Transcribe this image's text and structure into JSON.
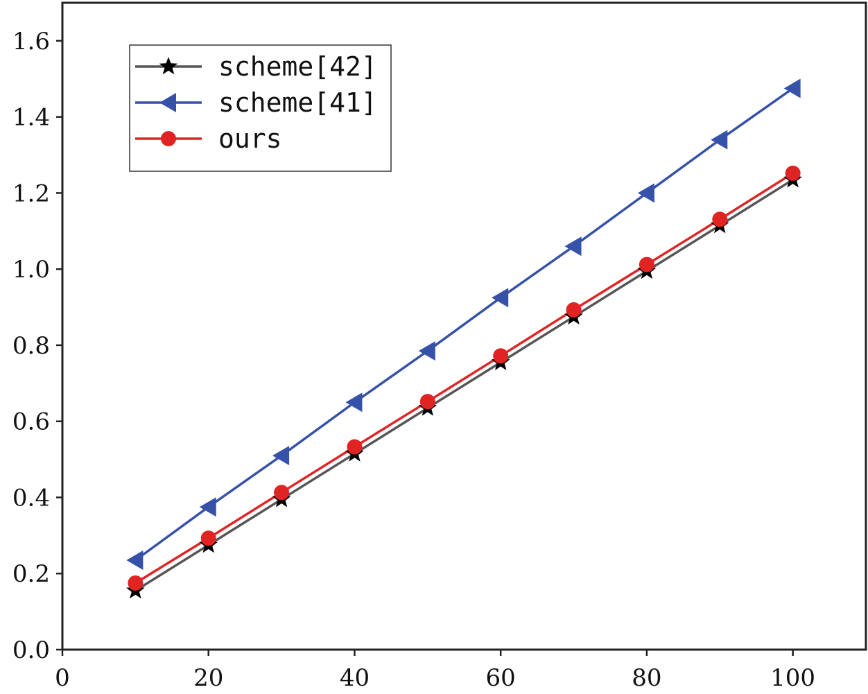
{
  "chart_data": {
    "type": "line",
    "title": "",
    "xlabel": "",
    "ylabel": "",
    "xlim": [
      0,
      110
    ],
    "ylim": [
      0.0,
      1.7
    ],
    "x_ticks": [
      0,
      20,
      40,
      60,
      80,
      100
    ],
    "x_tick_labels": [
      "0",
      "20",
      "40",
      "60",
      "80",
      "100"
    ],
    "y_ticks": [
      0.0,
      0.2,
      0.4,
      0.6,
      0.8,
      1.0,
      1.2,
      1.4,
      1.6
    ],
    "y_tick_labels": [
      "0.0",
      "0.2",
      "0.4",
      "0.6",
      "0.8",
      "1.0",
      "1.2",
      "1.4",
      "1.6"
    ],
    "x": [
      10,
      20,
      30,
      40,
      50,
      60,
      70,
      80,
      90,
      100
    ],
    "grid": false,
    "legend_position": "top-left",
    "series": [
      {
        "name": "scheme[42]",
        "color": "#555555",
        "marker": "star",
        "marker_color": "#000000",
        "values": [
          0.155,
          0.275,
          0.395,
          0.515,
          0.635,
          0.755,
          0.875,
          0.995,
          1.115,
          1.235
        ]
      },
      {
        "name": "scheme[41]",
        "color": "#3651a8",
        "marker": "triangle-left",
        "marker_color": "#3651a8",
        "values": [
          0.235,
          0.375,
          0.51,
          0.65,
          0.785,
          0.925,
          1.06,
          1.2,
          1.34,
          1.475
        ]
      },
      {
        "name": "ours",
        "color": "#e02424",
        "marker": "circle",
        "marker_color": "#e02424",
        "values": [
          0.175,
          0.293,
          0.413,
          0.533,
          0.652,
          0.772,
          0.893,
          1.012,
          1.131,
          1.252
        ]
      }
    ]
  }
}
